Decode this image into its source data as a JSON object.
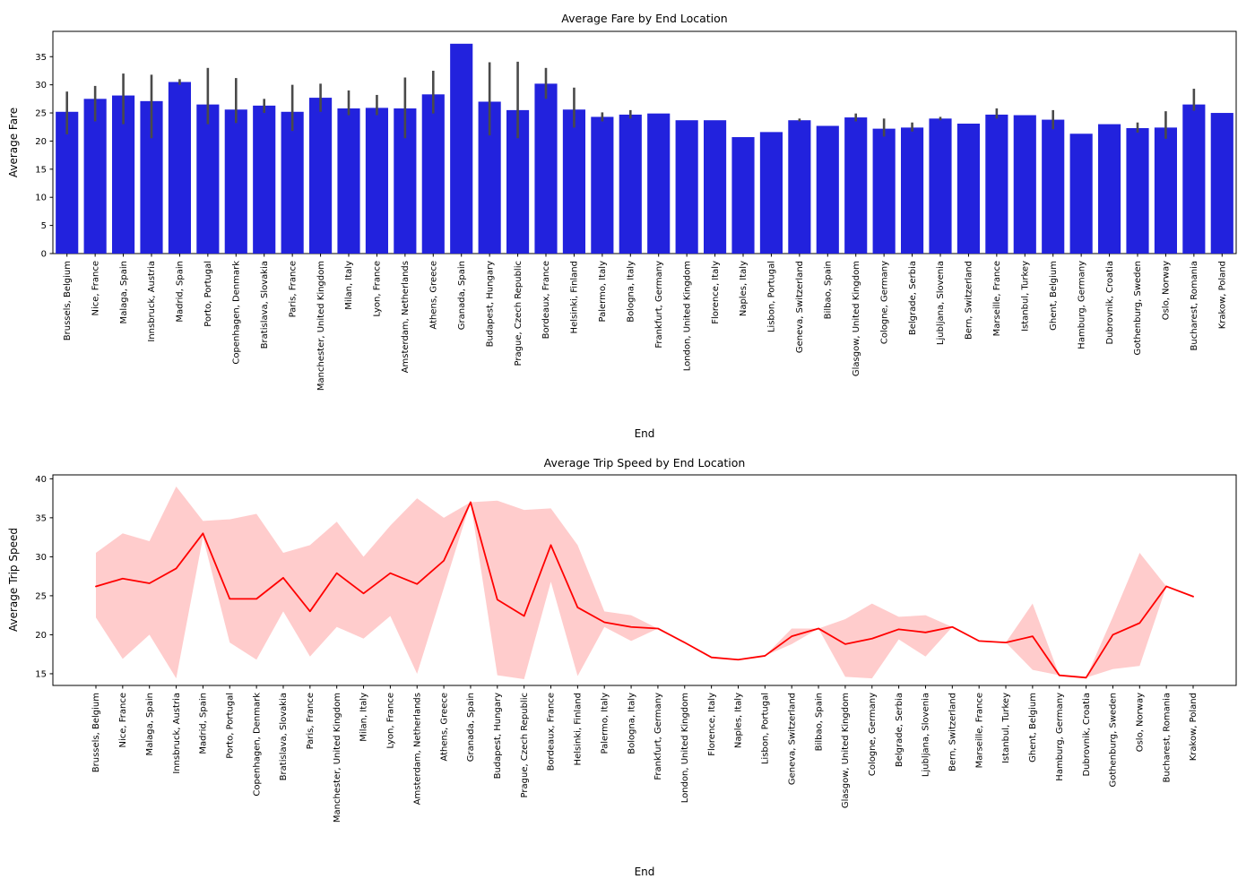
{
  "chart_data": [
    {
      "type": "bar",
      "title": "Average Fare by End Location",
      "xlabel": "End",
      "ylabel": "Average Fare",
      "ylim": [
        0,
        39.5
      ],
      "yticks": [
        0,
        5,
        10,
        15,
        20,
        25,
        30,
        35
      ],
      "bar_color": "#2222dd",
      "error_color": "#4a4a4a",
      "grid": false,
      "legend": "none",
      "categories": [
        "Brussels, Belgium",
        "Nice, France",
        "Malaga, Spain",
        "Innsbruck, Austria",
        "Madrid, Spain",
        "Porto, Portugal",
        "Copenhagen, Denmark",
        "Bratislava, Slovakia",
        "Paris, France",
        "Manchester, United Kingdom",
        "Milan, Italy",
        "Lyon, France",
        "Amsterdam, Netherlands",
        "Athens, Greece",
        "Granada, Spain",
        "Budapest, Hungary",
        "Prague, Czech Republic",
        "Bordeaux, France",
        "Helsinki, Finland",
        "Palermo, Italy",
        "Bologna, Italy",
        "Frankfurt, Germany",
        "London, United Kingdom",
        "Florence, Italy",
        "Naples, Italy",
        "Lisbon, Portugal",
        "Geneva, Switzerland",
        "Bilbao, Spain",
        "Glasgow, United Kingdom",
        "Cologne, Germany",
        "Belgrade, Serbia",
        "Ljubljana, Slovenia",
        "Bern, Switzerland",
        "Marseille, France",
        "Istanbul, Turkey",
        "Ghent, Belgium",
        "Hamburg, Germany",
        "Dubrovnik, Croatia",
        "Gothenburg, Sweden",
        "Oslo, Norway",
        "Bucharest, Romania",
        "Krakow, Poland"
      ],
      "values": [
        25.2,
        27.5,
        28.1,
        27.1,
        30.5,
        26.5,
        25.6,
        26.3,
        25.2,
        27.7,
        25.8,
        25.9,
        25.8,
        28.3,
        37.3,
        27.0,
        25.5,
        30.2,
        25.6,
        24.3,
        24.7,
        24.9,
        23.7,
        23.7,
        20.7,
        21.6,
        23.7,
        22.7,
        24.2,
        22.2,
        22.4,
        24.0,
        23.1,
        24.7,
        24.6,
        23.8,
        21.3,
        23.0,
        22.3,
        22.4,
        26.5,
        25.0
      ],
      "error_low": [
        21.2,
        23.5,
        23.0,
        20.5,
        30.0,
        23.0,
        23.2,
        25.0,
        21.8,
        25.2,
        24.6,
        24.6,
        20.5,
        24.9,
        37.3,
        21.0,
        20.5,
        27.5,
        22.4,
        23.5,
        24.0,
        24.9,
        23.7,
        23.7,
        20.7,
        21.6,
        23.5,
        22.7,
        23.5,
        20.8,
        21.7,
        23.7,
        23.1,
        24.0,
        24.6,
        22.1,
        21.3,
        23.0,
        21.5,
        20.4,
        25.4,
        25.0
      ],
      "error_high": [
        28.8,
        29.8,
        32.0,
        31.8,
        31.0,
        33.0,
        31.2,
        27.5,
        30.0,
        30.2,
        29.0,
        28.2,
        31.3,
        32.5,
        37.3,
        34.0,
        34.1,
        33.0,
        29.5,
        25.1,
        25.5,
        24.9,
        23.7,
        23.7,
        20.7,
        21.6,
        24.0,
        22.7,
        24.9,
        24.0,
        23.3,
        24.3,
        23.1,
        25.8,
        24.6,
        25.5,
        21.3,
        23.0,
        23.3,
        25.3,
        29.3,
        25.0
      ]
    },
    {
      "type": "line",
      "title": "Average Trip Speed by End Location",
      "xlabel": "End",
      "ylabel": "Average Trip Speed",
      "ylim": [
        13.5,
        40.5
      ],
      "yticks": [
        15,
        20,
        25,
        30,
        35,
        40
      ],
      "line_color": "#ff0000",
      "band_opacity": 0.2,
      "grid": false,
      "legend": "none",
      "categories": [
        "Brussels, Belgium",
        "Nice, France",
        "Malaga, Spain",
        "Innsbruck, Austria",
        "Madrid, Spain",
        "Porto, Portugal",
        "Copenhagen, Denmark",
        "Bratislava, Slovakia",
        "Paris, France",
        "Manchester, United Kingdom",
        "Milan, Italy",
        "Lyon, France",
        "Amsterdam, Netherlands",
        "Athens, Greece",
        "Granada, Spain",
        "Budapest, Hungary",
        "Prague, Czech Republic",
        "Bordeaux, France",
        "Helsinki, Finland",
        "Palermo, Italy",
        "Bologna, Italy",
        "Frankfurt, Germany",
        "London, United Kingdom",
        "Florence, Italy",
        "Naples, Italy",
        "Lisbon, Portugal",
        "Geneva, Switzerland",
        "Bilbao, Spain",
        "Glasgow, United Kingdom",
        "Cologne, Germany",
        "Belgrade, Serbia",
        "Ljubljana, Slovenia",
        "Bern, Switzerland",
        "Marseille, France",
        "Istanbul, Turkey",
        "Ghent, Belgium",
        "Hamburg, Germany",
        "Dubrovnik, Croatia",
        "Gothenburg, Sweden",
        "Oslo, Norway",
        "Bucharest, Romania",
        "Krakow, Poland"
      ],
      "values": [
        26.2,
        27.2,
        26.6,
        28.5,
        33.0,
        24.6,
        24.6,
        27.3,
        23.0,
        27.9,
        25.3,
        27.9,
        26.5,
        29.5,
        37.0,
        24.5,
        22.4,
        31.5,
        23.5,
        21.6,
        21.0,
        20.8,
        19.0,
        17.1,
        16.8,
        17.3,
        19.8,
        20.8,
        18.8,
        19.5,
        20.7,
        20.3,
        21.0,
        19.2,
        19.0,
        19.8,
        14.8,
        14.5,
        20.0,
        21.5,
        26.2,
        24.9
      ],
      "band_low": [
        22.2,
        16.9,
        20.0,
        14.4,
        32.5,
        19.0,
        16.8,
        23.0,
        17.2,
        21.0,
        19.5,
        22.4,
        15.0,
        26.0,
        37.0,
        14.8,
        14.3,
        26.8,
        14.7,
        21.0,
        19.2,
        20.8,
        19.0,
        17.1,
        16.8,
        17.3,
        18.8,
        20.8,
        14.6,
        14.4,
        19.4,
        17.2,
        21.0,
        19.2,
        19.0,
        15.5,
        14.8,
        14.5,
        15.6,
        16.0,
        26.2,
        24.9
      ],
      "band_high": [
        30.5,
        33.0,
        32.0,
        39.0,
        34.6,
        34.8,
        35.5,
        30.5,
        31.5,
        34.5,
        30.0,
        34.0,
        37.5,
        35.0,
        37.0,
        37.2,
        36.0,
        36.2,
        31.5,
        23.0,
        22.5,
        20.8,
        19.0,
        17.1,
        16.8,
        17.3,
        20.8,
        20.8,
        22.0,
        24.0,
        22.3,
        22.5,
        21.0,
        19.2,
        19.0,
        24.0,
        14.8,
        14.5,
        22.3,
        30.5,
        26.2,
        24.9
      ]
    }
  ]
}
